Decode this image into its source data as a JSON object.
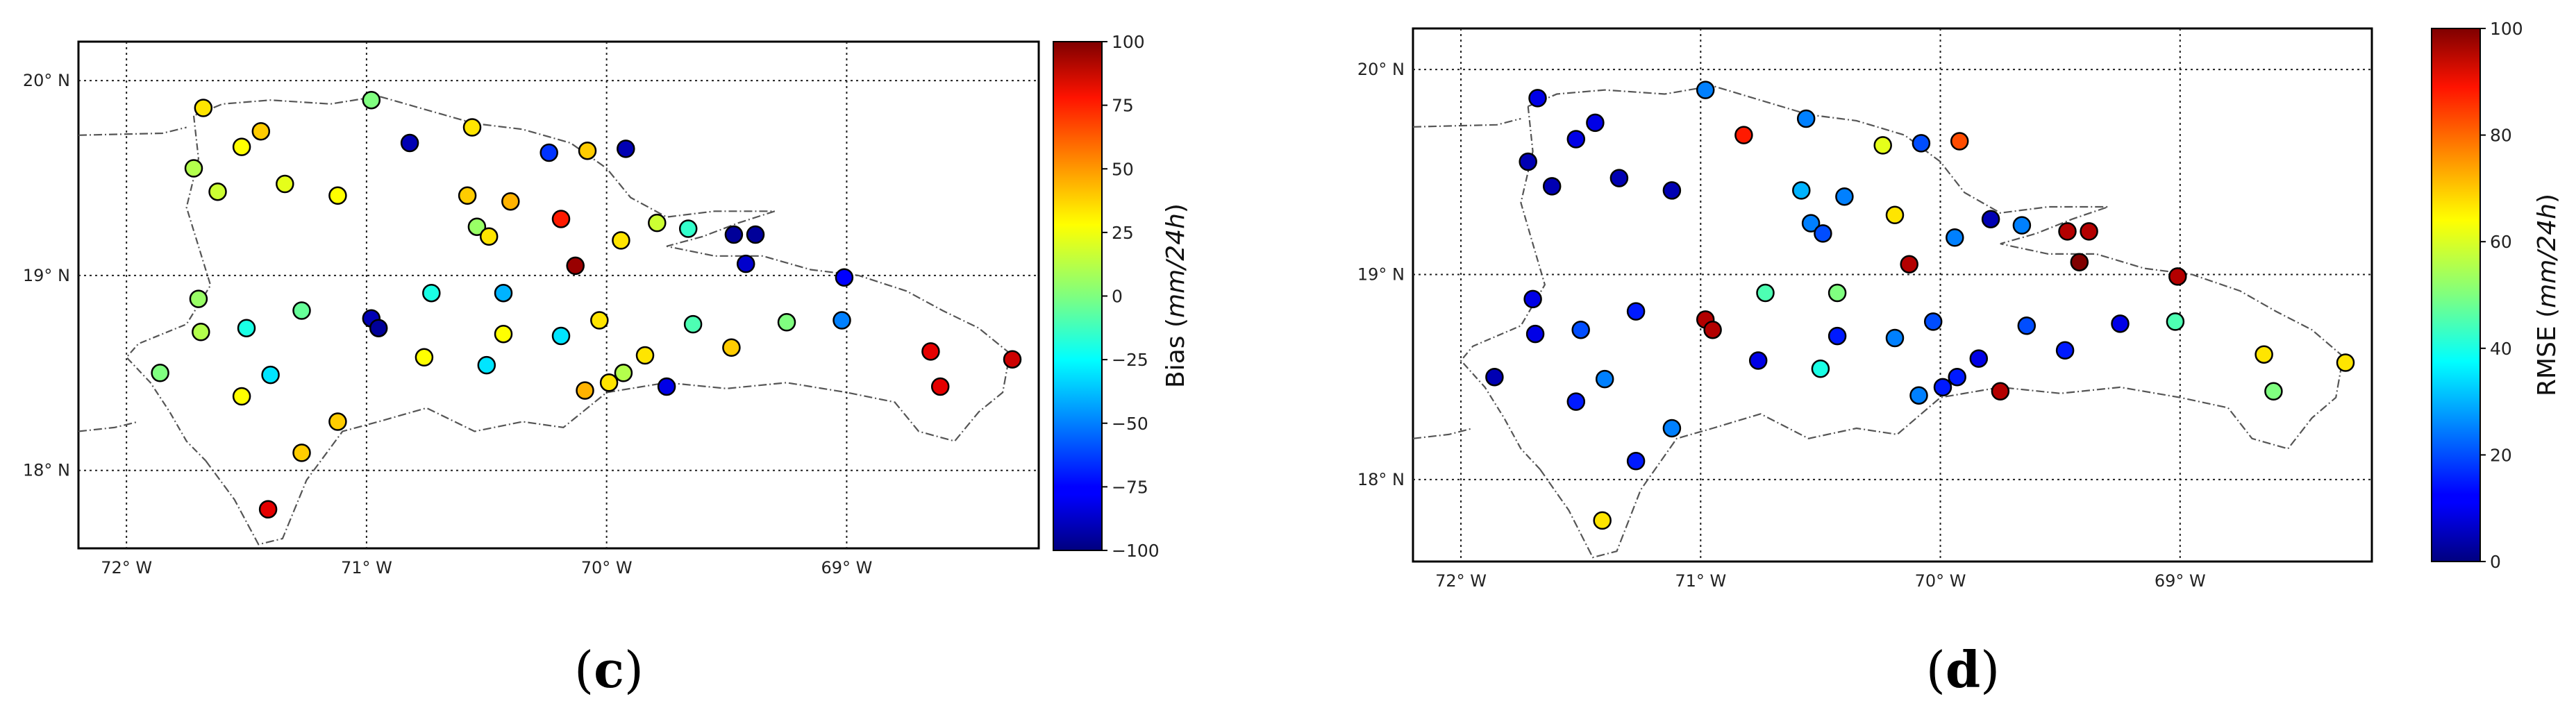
{
  "panels": [
    {
      "id": "c",
      "caption_prefix": "(",
      "caption_letter": "c",
      "caption_suffix": ")",
      "colorbar": {
        "label_prefix": "Bias (",
        "label_unit": "mm/24h",
        "label_suffix": ")",
        "ticks": [
          "100",
          "75",
          "50",
          "25",
          "0",
          "−25",
          "−50",
          "−75",
          "−100"
        ],
        "range": [
          -100,
          100
        ],
        "colormap": "jet"
      },
      "x_ticks": [
        "72° W",
        "71° W",
        "70° W",
        "69° W"
      ],
      "y_ticks": [
        "20° N",
        "19° N",
        "18° N"
      ],
      "points": [
        [
          -71.68,
          19.86,
          30
        ],
        [
          -71.44,
          19.74,
          35
        ],
        [
          -71.52,
          19.66,
          25
        ],
        [
          -71.72,
          19.55,
          10
        ],
        [
          -71.62,
          19.43,
          15
        ],
        [
          -71.34,
          19.47,
          20
        ],
        [
          -71.12,
          19.41,
          25
        ],
        [
          -70.98,
          19.9,
          0
        ],
        [
          -70.82,
          19.68,
          -90
        ],
        [
          -70.56,
          19.76,
          30
        ],
        [
          -70.24,
          19.63,
          -65
        ],
        [
          -70.08,
          19.64,
          35
        ],
        [
          -69.92,
          19.65,
          -90
        ],
        [
          -70.58,
          19.41,
          35
        ],
        [
          -70.4,
          19.38,
          40
        ],
        [
          -70.54,
          19.25,
          5
        ],
        [
          -70.49,
          19.2,
          30
        ],
        [
          -70.19,
          19.29,
          70
        ],
        [
          -69.94,
          19.18,
          30
        ],
        [
          -69.79,
          19.27,
          15
        ],
        [
          -69.66,
          19.24,
          -15
        ],
        [
          -69.47,
          19.21,
          -95
        ],
        [
          -69.38,
          19.21,
          -95
        ],
        [
          -69.42,
          19.06,
          -85
        ],
        [
          -70.13,
          19.05,
          95
        ],
        [
          -69.01,
          18.99,
          -75
        ],
        [
          -71.7,
          18.88,
          5
        ],
        [
          -71.69,
          18.71,
          10
        ],
        [
          -71.5,
          18.73,
          -20
        ],
        [
          -71.27,
          18.82,
          -5
        ],
        [
          -70.98,
          18.78,
          -90
        ],
        [
          -70.95,
          18.73,
          -95
        ],
        [
          -70.73,
          18.91,
          -20
        ],
        [
          -70.43,
          18.91,
          -40
        ],
        [
          -71.86,
          18.5,
          0
        ],
        [
          -71.4,
          18.49,
          -30
        ],
        [
          -71.52,
          18.38,
          25
        ],
        [
          -70.76,
          18.58,
          25
        ],
        [
          -70.5,
          18.54,
          -30
        ],
        [
          -70.43,
          18.7,
          25
        ],
        [
          -70.03,
          18.77,
          30
        ],
        [
          -70.19,
          18.69,
          -30
        ],
        [
          -69.93,
          18.5,
          10
        ],
        [
          -69.99,
          18.45,
          30
        ],
        [
          -69.84,
          18.59,
          30
        ],
        [
          -69.75,
          18.43,
          -80
        ],
        [
          -69.64,
          18.75,
          -10
        ],
        [
          -69.48,
          18.63,
          35
        ],
        [
          -69.25,
          18.76,
          0
        ],
        [
          -69.02,
          18.77,
          -50
        ],
        [
          -71.12,
          18.25,
          35
        ],
        [
          -71.27,
          18.09,
          35
        ],
        [
          -70.09,
          18.41,
          40
        ],
        [
          -71.41,
          17.8,
          80
        ],
        [
          -68.65,
          18.61,
          80
        ],
        [
          -68.61,
          18.43,
          80
        ],
        [
          -68.31,
          18.57,
          85
        ]
      ]
    },
    {
      "id": "d",
      "caption_prefix": "(",
      "caption_letter": "d",
      "caption_suffix": ")",
      "colorbar": {
        "label_prefix": "RMSE (",
        "label_unit": "mm/24h",
        "label_suffix": ")",
        "ticks": [
          "100",
          "80",
          "60",
          "40",
          "20",
          "0"
        ],
        "range": [
          0,
          100
        ],
        "colormap": "jet"
      },
      "x_ticks": [
        "72° W",
        "71° W",
        "70° W",
        "69° W"
      ],
      "y_ticks": [
        "20° N",
        "19° N",
        "18° N"
      ],
      "points": [
        [
          -71.68,
          19.86,
          10
        ],
        [
          -71.44,
          19.74,
          10
        ],
        [
          -71.52,
          19.66,
          10
        ],
        [
          -71.72,
          19.55,
          5
        ],
        [
          -71.62,
          19.43,
          5
        ],
        [
          -71.34,
          19.47,
          5
        ],
        [
          -71.12,
          19.41,
          5
        ],
        [
          -70.98,
          19.9,
          25
        ],
        [
          -70.82,
          19.68,
          85
        ],
        [
          -70.56,
          19.76,
          25
        ],
        [
          -70.24,
          19.63,
          60
        ],
        [
          -70.08,
          19.64,
          20
        ],
        [
          -69.92,
          19.65,
          80
        ],
        [
          -70.58,
          19.41,
          30
        ],
        [
          -70.4,
          19.38,
          25
        ],
        [
          -70.54,
          19.25,
          25
        ],
        [
          -70.49,
          19.2,
          20
        ],
        [
          -70.19,
          19.29,
          65
        ],
        [
          -69.94,
          19.18,
          25
        ],
        [
          -69.79,
          19.27,
          5
        ],
        [
          -69.66,
          19.24,
          25
        ],
        [
          -69.47,
          19.21,
          95
        ],
        [
          -69.38,
          19.21,
          95
        ],
        [
          -69.42,
          19.06,
          100
        ],
        [
          -70.13,
          19.05,
          95
        ],
        [
          -69.01,
          18.99,
          95
        ],
        [
          -71.7,
          18.88,
          10
        ],
        [
          -71.69,
          18.71,
          10
        ],
        [
          -71.5,
          18.73,
          20
        ],
        [
          -71.27,
          18.82,
          15
        ],
        [
          -70.98,
          18.78,
          95
        ],
        [
          -70.95,
          18.73,
          95
        ],
        [
          -70.73,
          18.91,
          45
        ],
        [
          -70.43,
          18.91,
          50
        ],
        [
          -71.86,
          18.5,
          5
        ],
        [
          -71.4,
          18.49,
          25
        ],
        [
          -71.52,
          18.38,
          15
        ],
        [
          -70.76,
          18.58,
          10
        ],
        [
          -70.5,
          18.54,
          40
        ],
        [
          -70.43,
          18.7,
          15
        ],
        [
          -70.03,
          18.77,
          20
        ],
        [
          -70.19,
          18.69,
          25
        ],
        [
          -69.93,
          18.5,
          15
        ],
        [
          -69.99,
          18.45,
          15
        ],
        [
          -69.84,
          18.59,
          10
        ],
        [
          -69.75,
          18.43,
          95
        ],
        [
          -69.64,
          18.75,
          20
        ],
        [
          -69.48,
          18.63,
          15
        ],
        [
          -69.25,
          18.76,
          10
        ],
        [
          -69.02,
          18.77,
          45
        ],
        [
          -71.12,
          18.25,
          25
        ],
        [
          -71.27,
          18.09,
          15
        ],
        [
          -70.09,
          18.41,
          25
        ],
        [
          -71.41,
          17.8,
          65
        ],
        [
          -68.65,
          18.61,
          65
        ],
        [
          -68.61,
          18.43,
          50
        ],
        [
          -68.31,
          18.57,
          65
        ]
      ]
    }
  ],
  "map_extent": {
    "lon": [
      -72.2,
      -68.2
    ],
    "lat": [
      17.6,
      20.2
    ]
  },
  "x_tick_values": [
    -72,
    -71,
    -70,
    -69
  ],
  "y_tick_values": [
    20,
    19,
    18
  ],
  "colors": {
    "frame": "#000000",
    "coast": "#555555",
    "grid": "#222222",
    "marker_edge": "#000000"
  }
}
